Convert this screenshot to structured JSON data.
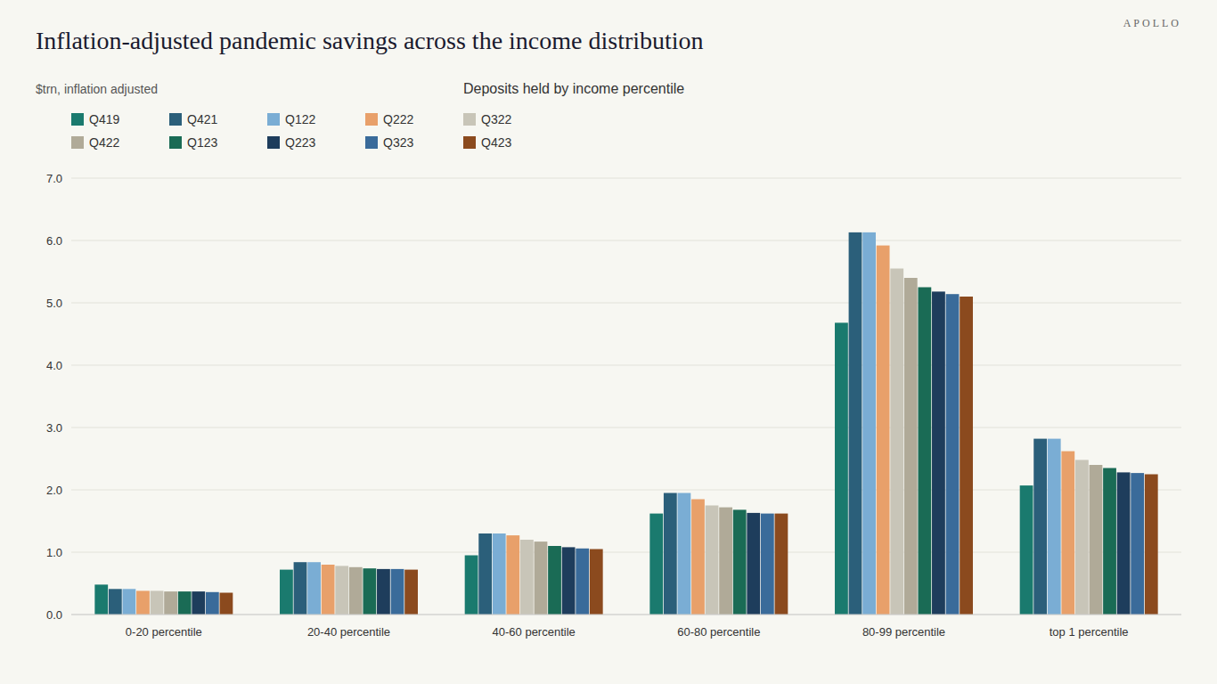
{
  "chart_data": {
    "type": "bar",
    "title": "Inflation-adjusted pandemic savings across the income distribution",
    "subtitle": "$trn, inflation adjusted",
    "annotations": [
      "Deposits held by income percentile",
      "APOLLO"
    ],
    "categories": [
      "0-20 percentile",
      "20-40 percentile",
      "40-60 percentile",
      "60-80 percentile",
      "80-99 percentile",
      "top 1 percentile"
    ],
    "series": [
      {
        "name": "Q419",
        "color": "#1a7a6e",
        "values": [
          0.48,
          0.72,
          0.95,
          1.62,
          4.68,
          2.07
        ]
      },
      {
        "name": "Q421",
        "color": "#2b5f7a",
        "values": [
          0.41,
          0.84,
          1.3,
          1.95,
          6.13,
          2.82
        ]
      },
      {
        "name": "Q122",
        "color": "#7aadd4",
        "values": [
          0.41,
          0.84,
          1.3,
          1.95,
          6.13,
          2.82
        ]
      },
      {
        "name": "Q222",
        "color": "#e8a06a",
        "values": [
          0.38,
          0.8,
          1.27,
          1.85,
          5.92,
          2.62
        ]
      },
      {
        "name": "Q322",
        "color": "#c8c5b8",
        "values": [
          0.38,
          0.78,
          1.2,
          1.75,
          5.55,
          2.48
        ]
      },
      {
        "name": "Q422",
        "color": "#b0aa98",
        "values": [
          0.37,
          0.76,
          1.17,
          1.72,
          5.4,
          2.4
        ]
      },
      {
        "name": "Q123",
        "color": "#1a6b55",
        "values": [
          0.37,
          0.74,
          1.1,
          1.68,
          5.25,
          2.35
        ]
      },
      {
        "name": "Q223",
        "color": "#1e3d5c",
        "values": [
          0.37,
          0.73,
          1.08,
          1.63,
          5.18,
          2.28
        ]
      },
      {
        "name": "Q323",
        "color": "#3a6b9a",
        "values": [
          0.36,
          0.73,
          1.06,
          1.62,
          5.14,
          2.27
        ]
      },
      {
        "name": "Q423",
        "color": "#8b4a1e",
        "values": [
          0.35,
          0.72,
          1.05,
          1.62,
          5.1,
          2.25
        ]
      }
    ],
    "ylim": [
      0,
      7.0
    ],
    "yticks": [
      {
        "value": 0.0,
        "label": "0.0"
      },
      {
        "value": 1.0,
        "label": "1.0"
      },
      {
        "value": 2.0,
        "label": "2.0"
      },
      {
        "value": 3.0,
        "label": "3.0"
      },
      {
        "value": 4.0,
        "label": "4.0"
      },
      {
        "value": 5.0,
        "label": "5.0"
      },
      {
        "value": 6.0,
        "label": "6.0"
      },
      {
        "value": 7.0,
        "label": "7.0"
      }
    ],
    "grid": true,
    "legend": "top"
  }
}
